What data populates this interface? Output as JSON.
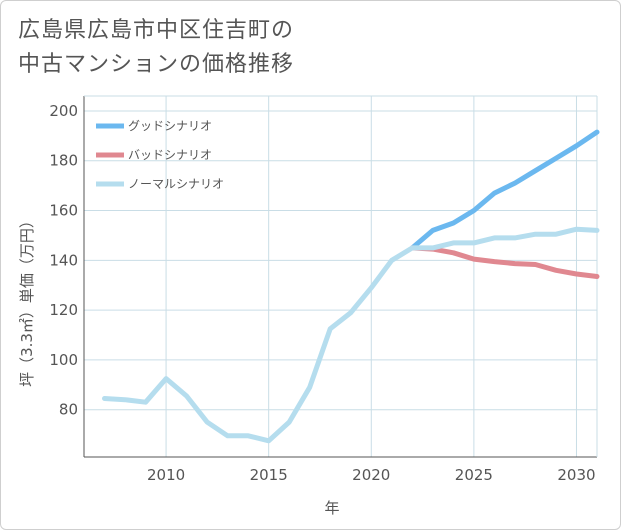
{
  "title_line1": "広島県広島市中区住吉町の",
  "title_line2": "中古マンションの価格推移",
  "colors": {
    "good": "#6bb8ef",
    "bad": "#e08890",
    "normal": "#b5ddee",
    "grid": "#c9dde6",
    "axis": "#555555"
  },
  "chart_data": {
    "type": "line",
    "xlabel": "年",
    "ylabel": "坪（3.3㎡）単価（万円）",
    "xlim": [
      2006,
      2031
    ],
    "ylim": [
      61,
      206
    ],
    "xticks": [
      2010,
      2015,
      2020,
      2025,
      2030
    ],
    "yticks": [
      80,
      100,
      120,
      140,
      160,
      180,
      200
    ],
    "legend_position": "top-left",
    "series": [
      {
        "name": "グッドシナリオ",
        "color_key": "good",
        "points": [
          [
            2022,
            145
          ],
          [
            2023,
            152
          ],
          [
            2024,
            155
          ],
          [
            2025,
            160
          ],
          [
            2026,
            167
          ],
          [
            2027,
            171
          ],
          [
            2028,
            176
          ],
          [
            2029,
            181
          ],
          [
            2030,
            186
          ],
          [
            2031,
            191.5
          ]
        ]
      },
      {
        "name": "バッドシナリオ",
        "color_key": "bad",
        "points": [
          [
            2022,
            145
          ],
          [
            2023,
            144.5
          ],
          [
            2024,
            143
          ],
          [
            2025,
            140.5
          ],
          [
            2026,
            139.5
          ],
          [
            2027,
            138.7
          ],
          [
            2028,
            138.3
          ],
          [
            2029,
            136
          ],
          [
            2030,
            134.5
          ],
          [
            2031,
            133.5
          ]
        ]
      },
      {
        "name": "ノーマルシナリオ",
        "color_key": "normal",
        "points": [
          [
            2007,
            84.5
          ],
          [
            2008,
            84
          ],
          [
            2009,
            83
          ],
          [
            2010,
            92.5
          ],
          [
            2011,
            85.5
          ],
          [
            2012,
            75
          ],
          [
            2013,
            69.5
          ],
          [
            2014,
            69.5
          ],
          [
            2015,
            67.5
          ],
          [
            2016,
            75
          ],
          [
            2017,
            89
          ],
          [
            2018,
            112.5
          ],
          [
            2019,
            119
          ],
          [
            2020,
            129
          ],
          [
            2021,
            140
          ],
          [
            2022,
            145
          ],
          [
            2023,
            145
          ],
          [
            2024,
            147
          ],
          [
            2025,
            147
          ],
          [
            2026,
            149
          ],
          [
            2027,
            149
          ],
          [
            2028,
            150.5
          ],
          [
            2029,
            150.5
          ],
          [
            2030,
            152.5
          ],
          [
            2031,
            152
          ]
        ]
      }
    ]
  }
}
